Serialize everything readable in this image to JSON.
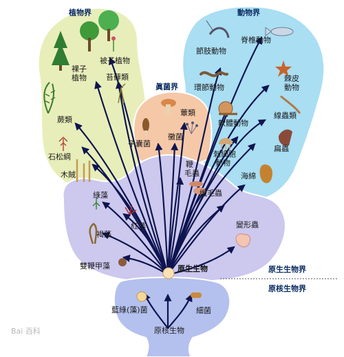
{
  "kingdoms": {
    "plants": "植物界",
    "animals": "動物界",
    "fungi": "眞菌界"
  },
  "realms": {
    "protista": "原生生物界",
    "monera": "原核生物界"
  },
  "groups": {
    "gymnosperms": "裸子\n植物",
    "angiosperms": "被子植物",
    "bryophytes": "苔蘚類",
    "ferns": "蕨類",
    "lycopods": "石松綱",
    "horsetails": "木賊",
    "arthropods": "節肢動物",
    "vertebrates": "脊椎動物",
    "annelids": "環節動物",
    "echinoderms": "棘皮\n動物",
    "mollusks": "軟體動物",
    "nematodes": "線蟲類",
    "cnidarians": "刺細胞\n動物",
    "flatworms": "扁蟲",
    "sponges": "海綿",
    "mushrooms": "蕈類",
    "ascomycetes": "子囊菌",
    "molds": "黴菌",
    "flagellates": "鞭\n毛蟲",
    "ciliates": "纖毛蟲",
    "green_algae": "綠藻",
    "red_algae": "紅藻",
    "brown_algae": "褐藻",
    "amoeba": "變形蟲",
    "dinoflagellates": "雙鞭甲藻",
    "protists": "原生生物",
    "cyanobacteria": "藍綠(藻)菌",
    "bacteria": "細菌",
    "prokaryotes": "原核生物"
  },
  "watermark": "Bai 百科",
  "colors": {
    "plants_region": "#e8eeb9",
    "animals_region": "#a9def3",
    "fungi_region": "#f5c8a8",
    "protista_region": "#ccc8ee",
    "monera_region": "#b4c0ee",
    "outline": "#ffffff",
    "arrow": "#0e1550",
    "title": "#0b2c62"
  },
  "icons": [
    "conifer-tree",
    "broadleaf-tree",
    "flower",
    "moss",
    "fern",
    "clubmoss",
    "horsetail",
    "shrimp",
    "fish",
    "worm",
    "starfish",
    "snail",
    "nematode",
    "jellyfish",
    "flatworm",
    "sponge",
    "mushroom",
    "morel",
    "mold",
    "flagellate",
    "ciliate",
    "green-alga",
    "red-alga",
    "brown-alga",
    "amoeba",
    "dinoflagellate",
    "protist-cell",
    "cyanobacterium",
    "bacterium"
  ]
}
